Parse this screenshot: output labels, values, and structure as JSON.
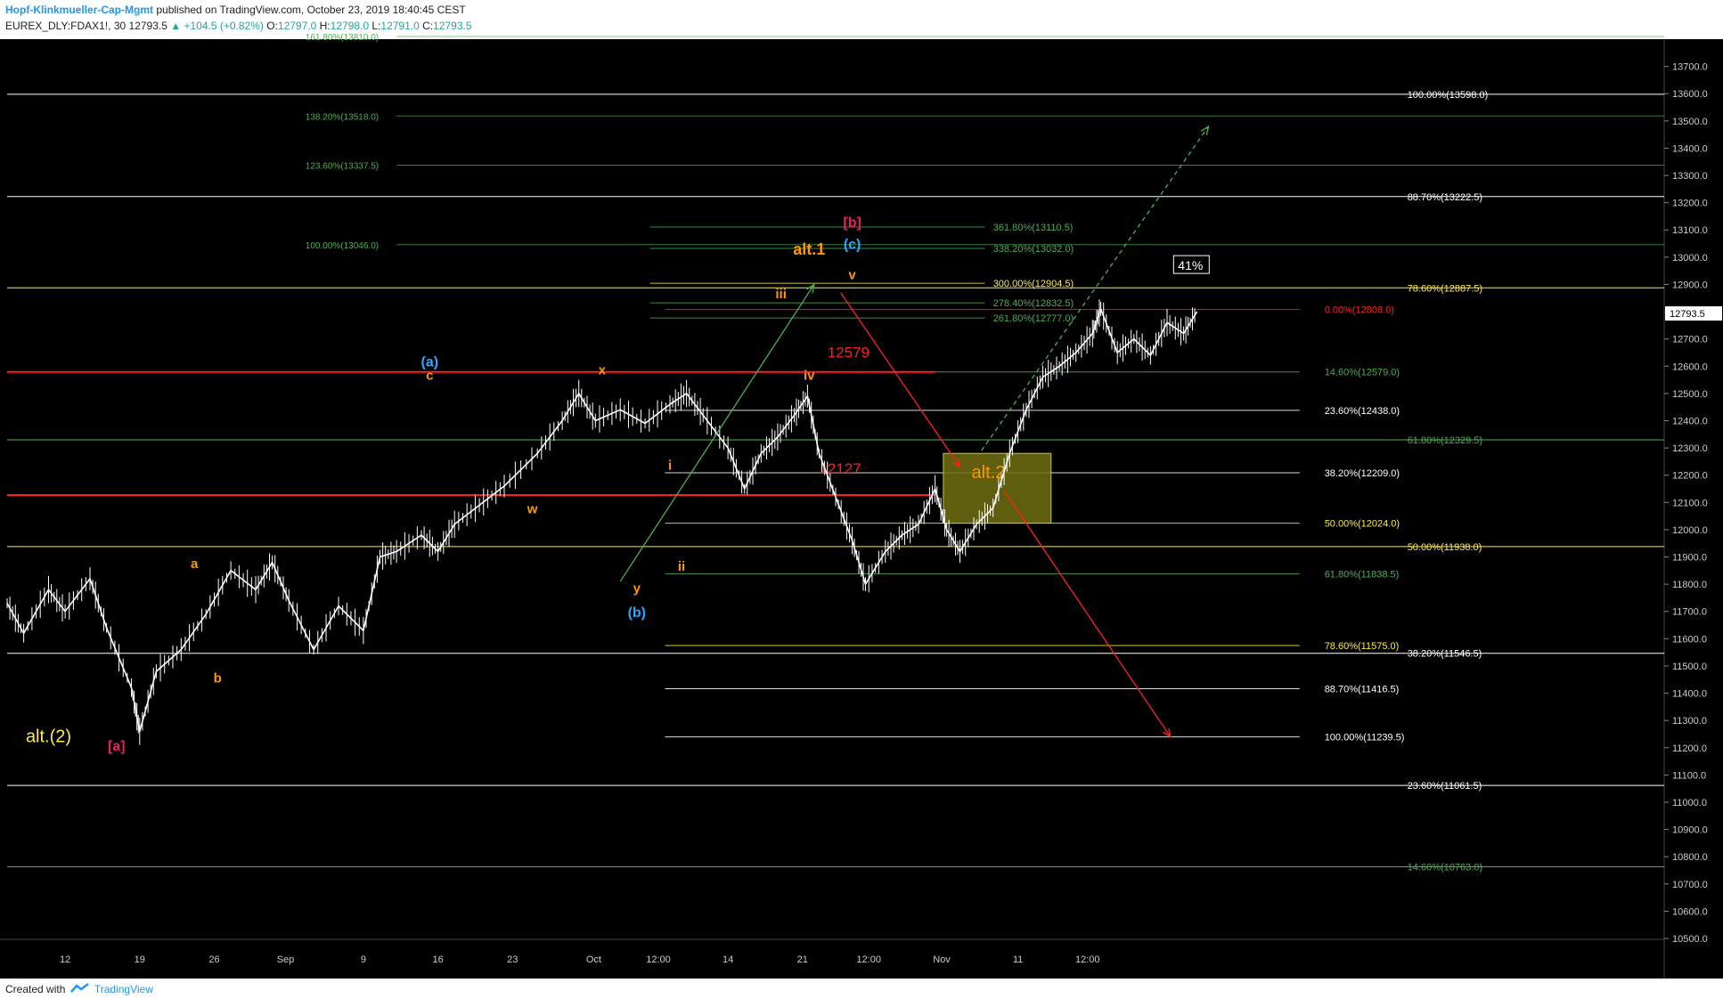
{
  "header": {
    "author": "Hopf-Klinkmueller-Cap-Mgmt",
    "published": "published on TradingView.com, October 23, 2019 18:40:45 CEST",
    "symbol": "EUREX_DLY:FDAX1!, 30",
    "last": "12793.5",
    "change": "+104.5 (+0.82%)",
    "o_label": "O:",
    "o": "12797.0",
    "h_label": "H:",
    "h": "12798.0",
    "l_label": "L:",
    "l": "12791.0",
    "c_label": "C:",
    "c": "12793.5"
  },
  "footer": {
    "created": "Created with",
    "brand": "TradingView"
  },
  "colors": {
    "background": "#000000",
    "candle": "#ffffff",
    "red": "#ff2020",
    "green": "#4caf50",
    "yellow": "#ffeb3b",
    "orange": "#ff9800",
    "blue": "#29a8ff",
    "magenta": "#e91e63",
    "box": "#6e6e10",
    "axis_text": "#cccccc"
  },
  "chart_data": {
    "type": "candlestick",
    "timeframe": "30",
    "y_range": [
      10500,
      13800
    ],
    "y_ticks": [
      "10500.0",
      "10600.0",
      "10700.0",
      "10800.0",
      "10900.0",
      "11000.0",
      "11100.0",
      "11200.0",
      "11300.0",
      "11400.0",
      "11500.0",
      "11600.0",
      "11700.0",
      "11800.0",
      "11900.0",
      "12000.0",
      "12100.0",
      "12200.0",
      "12300.0",
      "12400.0",
      "12500.0",
      "12600.0",
      "12700.0",
      "12800.0",
      "12900.0",
      "13000.0",
      "13100.0",
      "13200.0",
      "13300.0",
      "13400.0",
      "13500.0",
      "13600.0",
      "13700.0"
    ],
    "x_ticks": [
      "12",
      "19",
      "26",
      "Sep",
      "9",
      "16",
      "23",
      "Oct",
      "12:00",
      "14",
      "21",
      "12:00",
      "Nov",
      "11",
      "12:00"
    ],
    "price_label": "12793.5",
    "price_path": [
      [
        0,
        11730
      ],
      [
        0.01,
        11620
      ],
      [
        0.025,
        11780
      ],
      [
        0.035,
        11700
      ],
      [
        0.05,
        11820
      ],
      [
        0.06,
        11640
      ],
      [
        0.075,
        11420
      ],
      [
        0.08,
        11260
      ],
      [
        0.09,
        11480
      ],
      [
        0.105,
        11560
      ],
      [
        0.12,
        11690
      ],
      [
        0.135,
        11850
      ],
      [
        0.15,
        11780
      ],
      [
        0.16,
        11880
      ],
      [
        0.17,
        11740
      ],
      [
        0.185,
        11560
      ],
      [
        0.2,
        11720
      ],
      [
        0.215,
        11630
      ],
      [
        0.225,
        11900
      ],
      [
        0.235,
        11920
      ],
      [
        0.25,
        11980
      ],
      [
        0.26,
        11920
      ],
      [
        0.27,
        12020
      ],
      [
        0.285,
        12090
      ],
      [
        0.3,
        12160
      ],
      [
        0.32,
        12280
      ],
      [
        0.335,
        12400
      ],
      [
        0.345,
        12500
      ],
      [
        0.355,
        12400
      ],
      [
        0.37,
        12440
      ],
      [
        0.385,
        12390
      ],
      [
        0.4,
        12460
      ],
      [
        0.41,
        12500
      ],
      [
        0.42,
        12420
      ],
      [
        0.435,
        12300
      ],
      [
        0.445,
        12150
      ],
      [
        0.455,
        12280
      ],
      [
        0.465,
        12340
      ],
      [
        0.475,
        12420
      ],
      [
        0.483,
        12490
      ],
      [
        0.49,
        12280
      ],
      [
        0.5,
        12120
      ],
      [
        0.51,
        11960
      ],
      [
        0.518,
        11800
      ],
      [
        0.53,
        11920
      ],
      [
        0.54,
        11980
      ],
      [
        0.55,
        12020
      ],
      [
        0.56,
        12150
      ],
      [
        0.567,
        12000
      ],
      [
        0.575,
        11920
      ],
      [
        0.585,
        12020
      ],
      [
        0.595,
        12080
      ],
      [
        0.605,
        12280
      ],
      [
        0.615,
        12440
      ],
      [
        0.625,
        12560
      ],
      [
        0.635,
        12600
      ],
      [
        0.645,
        12650
      ],
      [
        0.655,
        12720
      ],
      [
        0.66,
        12810
      ],
      [
        0.67,
        12650
      ],
      [
        0.68,
        12700
      ],
      [
        0.69,
        12640
      ],
      [
        0.7,
        12760
      ],
      [
        0.71,
        12720
      ],
      [
        0.718,
        12800
      ]
    ],
    "lines_full": [
      {
        "label": "100.00%(13598.0)",
        "value": 13598.0,
        "color": "#ffffff"
      },
      {
        "label": "88.70%(13222.5)",
        "value": 13222.5,
        "color": "#ffffff"
      },
      {
        "label": "78.60%(12887.5)",
        "value": 12887.5,
        "color": "#ffeb3b"
      },
      {
        "label": "61.80%(12329.5)",
        "value": 12329.5,
        "color": "#4caf50"
      },
      {
        "label": "50.00%(11938.0)",
        "value": 11938.0,
        "color": "#ffeb3b"
      },
      {
        "label": "38.20%(11546.5)",
        "value": 11546.5,
        "color": "#ffffff"
      },
      {
        "label": "23.60%(11061.5)",
        "value": 11061.5,
        "color": "#ffffff"
      },
      {
        "label": "14.60%(10763.0)",
        "value": 10763.0,
        "color": "#4caf50"
      }
    ],
    "ext_upper_left": [
      {
        "label": "161.80%(13810.0)",
        "value": 13810.0,
        "color": "#4caf50"
      },
      {
        "label": "138.20%(13518.0)",
        "value": 13518.0,
        "color": "#4caf50"
      },
      {
        "label": "123.60%(13337.5)",
        "value": 13337.5,
        "color": "#4caf50"
      },
      {
        "label": "100.00%(13046.0)",
        "value": 13046.0,
        "color": "#4caf50"
      }
    ],
    "ext_upper_mid": [
      {
        "label": "361.80%(13110.5)",
        "value": 13110.5,
        "color": "#4caf50"
      },
      {
        "label": "338.20%(13032.0)",
        "value": 13032.0,
        "color": "#4caf50"
      },
      {
        "label": "300.00%(12904.5)",
        "value": 12904.5,
        "color": "#ffeb3b"
      },
      {
        "label": "278.40%(12832.5)",
        "value": 12832.5,
        "color": "#4caf50"
      },
      {
        "label": "261.80%(12777.0)",
        "value": 12777.0,
        "color": "#4caf50"
      }
    ],
    "retracements_mid": [
      {
        "label": "0.00%(12808.0)",
        "value": 12808.0,
        "color": "#ff2020"
      },
      {
        "label": "14.60%(12579.0)",
        "value": 12579.0,
        "color": "#4caf50"
      },
      {
        "label": "23.60%(12438.0)",
        "value": 12438.0,
        "color": "#ffffff"
      },
      {
        "label": "38.20%(12209.0)",
        "value": 12209.0,
        "color": "#ffffff"
      },
      {
        "label": "50.00%(12024.0)",
        "value": 12024.0,
        "color": "#ffeb3b"
      },
      {
        "label": "61.80%(11838.5)",
        "value": 11838.5,
        "color": "#4caf50"
      },
      {
        "label": "78.60%(11575.0)",
        "value": 11575.0,
        "color": "#ffeb3b"
      },
      {
        "label": "88.70%(11416.5)",
        "value": 11416.5,
        "color": "#ffffff"
      },
      {
        "label": "100.00%(11239.5)",
        "value": 11239.5,
        "color": "#ffffff"
      }
    ],
    "level_12579": "12579",
    "level_12127": "12127",
    "box_label": "alt.2",
    "pct_label": "41%",
    "wave_labels": [
      {
        "text": "alt.(2)",
        "color": "#ffeb3b",
        "size": 20
      },
      {
        "text": "[a]",
        "color": "#e91e63",
        "size": 16
      },
      {
        "text": "a",
        "color": "#ff9800",
        "size": 15
      },
      {
        "text": "b",
        "color": "#ff9800",
        "size": 15
      },
      {
        "text": "(a)",
        "color": "#29a8ff",
        "size": 16
      },
      {
        "text": "c",
        "color": "#ff9800",
        "size": 15
      },
      {
        "text": "w",
        "color": "#ff9800",
        "size": 15
      },
      {
        "text": "x",
        "color": "#ff9800",
        "size": 15
      },
      {
        "text": "y",
        "color": "#ff9800",
        "size": 15
      },
      {
        "text": "(b)",
        "color": "#29a8ff",
        "size": 16
      },
      {
        "text": "i",
        "color": "#ff9800",
        "size": 15
      },
      {
        "text": "ii",
        "color": "#ff9800",
        "size": 15
      },
      {
        "text": "iii",
        "color": "#ff9800",
        "size": 15
      },
      {
        "text": "iv",
        "color": "#ff9800",
        "size": 15
      },
      {
        "text": "v",
        "color": "#ff9800",
        "size": 15
      },
      {
        "text": "alt.1",
        "color": "#ff9800",
        "size": 18
      },
      {
        "text": "[b]",
        "color": "#e91e63",
        "size": 16
      },
      {
        "text": "(c)",
        "color": "#29a8ff",
        "size": 16
      }
    ]
  }
}
